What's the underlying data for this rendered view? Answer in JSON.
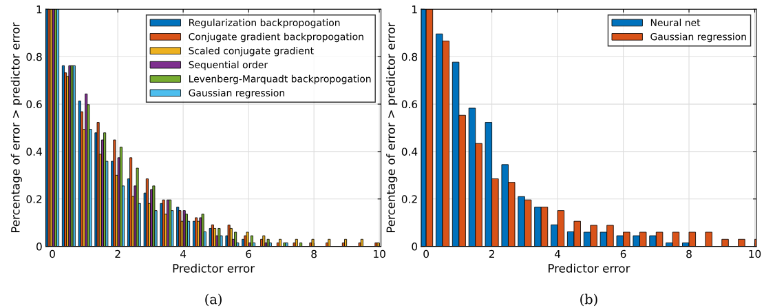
{
  "chart_data": [
    {
      "type": "bar",
      "xlabel": "Predictor error",
      "ylabel": "Percentage of error > predictor error",
      "annotations": [
        "(a)"
      ],
      "x": [
        0,
        0.5,
        1,
        1.5,
        2,
        2.5,
        3,
        3.5,
        4,
        4.5,
        5,
        5.5,
        6,
        6.5,
        7,
        7.5,
        8,
        8.5,
        9,
        9.5,
        10
      ],
      "xlim": [
        -0.2,
        10.05
      ],
      "xticks": [
        0,
        2,
        4,
        6,
        8,
        10
      ],
      "ylim": [
        0,
        1
      ],
      "yticks": [
        0,
        0.2,
        0.4,
        0.6,
        0.8,
        1
      ],
      "grid": true,
      "legend": "top right",
      "series": [
        {
          "name": "Regularization backpropogation",
          "color": "#0072bd",
          "values": [
            1,
            0.762,
            0.613,
            0.479,
            0.359,
            0.285,
            0.225,
            0.181,
            0.166,
            0.106,
            0.076,
            0.045,
            0.03,
            0,
            0,
            0,
            0,
            0,
            0,
            0,
            0
          ]
        },
        {
          "name": "Conjugate gradient backpropogation",
          "color": "#d95319",
          "values": [
            1,
            0.732,
            0.568,
            0.523,
            0.449,
            0.374,
            0.285,
            0.196,
            0.151,
            0.121,
            0.091,
            0.09,
            0.045,
            0.03,
            0.015,
            0.015,
            0.015,
            0.015,
            0.015,
            0.015,
            0.015
          ]
        },
        {
          "name": "Scaled conjugate gradient",
          "color": "#edb120",
          "values": [
            1,
            0.717,
            0.494,
            0.389,
            0.3,
            0.211,
            0.181,
            0.136,
            0.106,
            0.106,
            0.076,
            0.076,
            0.06,
            0.045,
            0.03,
            0.03,
            0.03,
            0.03,
            0.03,
            0.03,
            0.015
          ]
        },
        {
          "name": "Sequential order",
          "color": "#7e2f8e",
          "values": [
            1,
            0.762,
            0.643,
            0.449,
            0.374,
            0.255,
            0.24,
            0.196,
            0.151,
            0.121,
            0.045,
            0.03,
            0.015,
            0.015,
            0,
            0,
            0,
            0,
            0,
            0,
            0
          ]
        },
        {
          "name": "Levenberg-Marquadt backpropogation",
          "color": "#77ac30",
          "values": [
            1,
            0.762,
            0.598,
            0.479,
            0.419,
            0.33,
            0.255,
            0.196,
            0.136,
            0.136,
            0.076,
            0.06,
            0.045,
            0.03,
            0.015,
            0.015,
            0,
            0,
            0,
            0,
            0
          ]
        },
        {
          "name": "Gaussian regression",
          "color": "#4dbeee",
          "values": [
            1,
            0.762,
            0.494,
            0.359,
            0.255,
            0.181,
            0.151,
            0.151,
            0.106,
            0.062,
            0.045,
            0.015,
            0.015,
            0.015,
            0.015,
            0,
            0,
            0,
            0,
            0,
            0
          ]
        }
      ]
    },
    {
      "type": "bar",
      "xlabel": "Predictor error",
      "ylabel": "Percentage of error > predictor error",
      "annotations": [
        "(b)"
      ],
      "x": [
        0,
        0.5,
        1,
        1.5,
        2,
        2.5,
        3,
        3.5,
        4,
        4.5,
        5,
        5.5,
        6,
        6.5,
        7,
        7.5,
        8,
        8.5,
        9,
        9.5,
        10
      ],
      "xlim": [
        -0.15,
        10.05
      ],
      "xticks": [
        0,
        2,
        4,
        6,
        8,
        10
      ],
      "ylim": [
        0,
        1
      ],
      "yticks": [
        0,
        0.2,
        0.4,
        0.6,
        0.8,
        1
      ],
      "grid": true,
      "legend": "top right",
      "series": [
        {
          "name": "Neural net",
          "color": "#0072bd",
          "values": [
            1,
            0.896,
            0.777,
            0.583,
            0.523,
            0.345,
            0.21,
            0.166,
            0.091,
            0.062,
            0.06,
            0.06,
            0.045,
            0.045,
            0.045,
            0.015,
            0.015,
            0,
            0,
            0,
            0
          ]
        },
        {
          "name": "Gaussian regression",
          "color": "#d95319",
          "values": [
            1,
            0.866,
            0.553,
            0.434,
            0.285,
            0.27,
            0.196,
            0.166,
            0.151,
            0.106,
            0.089,
            0.089,
            0.06,
            0.06,
            0.06,
            0.06,
            0.06,
            0.06,
            0.03,
            0.03,
            0.03
          ]
        }
      ]
    }
  ]
}
